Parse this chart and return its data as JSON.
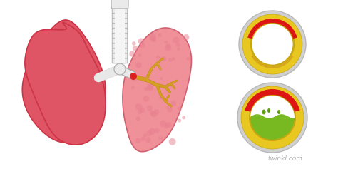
{
  "bg_color": "#ffffff",
  "lung_left_color": "#e05565",
  "lung_left_edge": "#cc3344",
  "lung_right_color": "#f09098",
  "lung_right_edge": "#d06070",
  "bronchi_color": "#d4a020",
  "bronchi_edge": "#b88010",
  "trachea_fill": "#e8e8e8",
  "trachea_edge": "#b0b0b0",
  "trachea_inner": "#f5f5f5",
  "airway_gray_outer": "#c8c8c8",
  "airway_gray_edge": "#a0a0a0",
  "airway_yellow": "#e8c820",
  "airway_yellow_edge": "#c8a810",
  "airway_red": "#dd1515",
  "airway_white": "#ffffff",
  "mucus_green": "#78b820",
  "mucus_green_dark": "#60a010",
  "mucus_bubble": "#90cc30",
  "watermark_color": "#b0b0b0",
  "watermark_text": "twinkl.com",
  "lung_texture_color": "#e88090"
}
